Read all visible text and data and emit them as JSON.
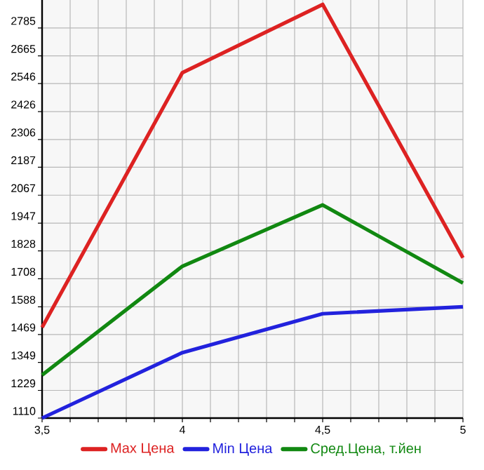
{
  "chart_data": {
    "type": "line",
    "x": [
      3.5,
      4,
      4.5,
      5
    ],
    "series": [
      {
        "name": "Max Цена",
        "color": "#dd2222",
        "values": [
          1499,
          2593,
          2886,
          1798
        ]
      },
      {
        "name": "Min Цена",
        "color": "#2222dd",
        "values": [
          1110,
          1391,
          1558,
          1588
        ]
      },
      {
        "name": "Сред.Цена, т.йен",
        "color": "#118811",
        "values": [
          1295,
          1762,
          2025,
          1690
        ]
      }
    ],
    "xlim": [
      3.5,
      5
    ],
    "ylim": [
      1110,
      2905
    ],
    "xticks": [
      {
        "value": 3.5,
        "label": "3,5"
      },
      4,
      {
        "value": 4.5,
        "label": "4,5"
      },
      5
    ],
    "yticks": [
      1110,
      1229,
      1349,
      1469,
      1588,
      1708,
      1828,
      1947,
      2067,
      2187,
      2306,
      2426,
      2546,
      2665,
      2785
    ],
    "grid": true,
    "legend": "bottom",
    "marker": "none",
    "line_style": "solid"
  }
}
